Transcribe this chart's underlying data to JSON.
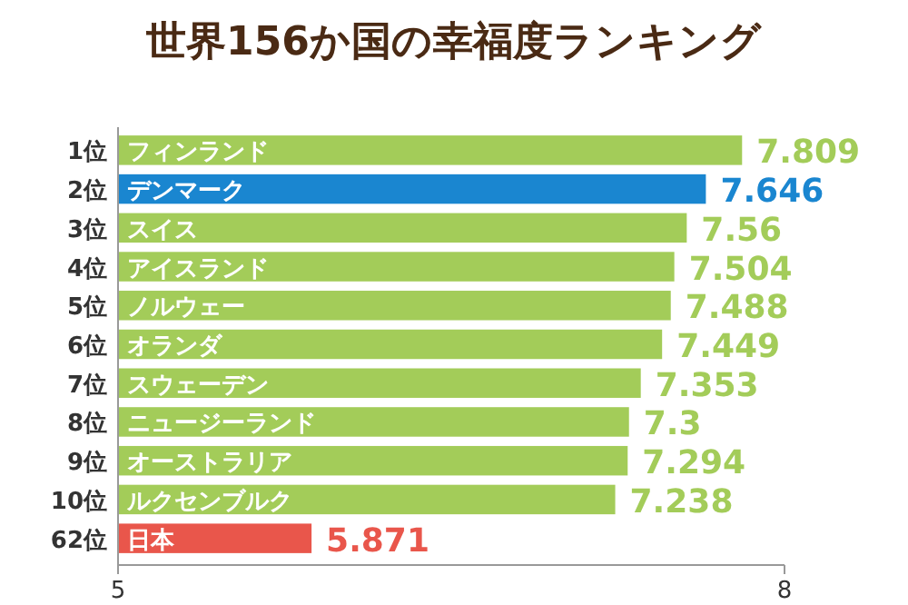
{
  "chart_data": {
    "type": "bar",
    "orientation": "horizontal",
    "title": "世界156か国の幸福度ランキング",
    "categories": [
      "1位",
      "2位",
      "3位",
      "4位",
      "5位",
      "6位",
      "7位",
      "8位",
      "9位",
      "10位",
      "62位"
    ],
    "values": [
      7.809,
      7.646,
      7.56,
      7.504,
      7.488,
      7.449,
      7.353,
      7.3,
      7.294,
      7.238,
      5.871
    ],
    "colors": [
      "#a3cc59",
      "#1a86d0",
      "#a3cc59",
      "#a3cc59",
      "#a3cc59",
      "#a3cc59",
      "#a3cc59",
      "#a3cc59",
      "#a3cc59",
      "#a3cc59",
      "#e9564b"
    ],
    "data_labels": true,
    "xlim": [
      5,
      8
    ],
    "xticks": [
      5,
      8
    ],
    "annotations": [
      {
        "text": "フィンランド",
        "y": "1位"
      },
      {
        "text": "デンマーク",
        "y": "2位"
      },
      {
        "text": "スイス",
        "y": "3位"
      },
      {
        "text": "アイスランド",
        "y": "4位"
      },
      {
        "text": "ノルウェー",
        "y": "5位"
      },
      {
        "text": "オランダ",
        "y": "6位"
      },
      {
        "text": "スウェーデン",
        "y": "7位"
      },
      {
        "text": "ニュージーランド",
        "y": "8位"
      },
      {
        "text": "オーストラリア",
        "y": "9位"
      },
      {
        "text": "ルクセンブルク",
        "y": "10位"
      },
      {
        "text": "日本",
        "y": "62位"
      }
    ]
  }
}
